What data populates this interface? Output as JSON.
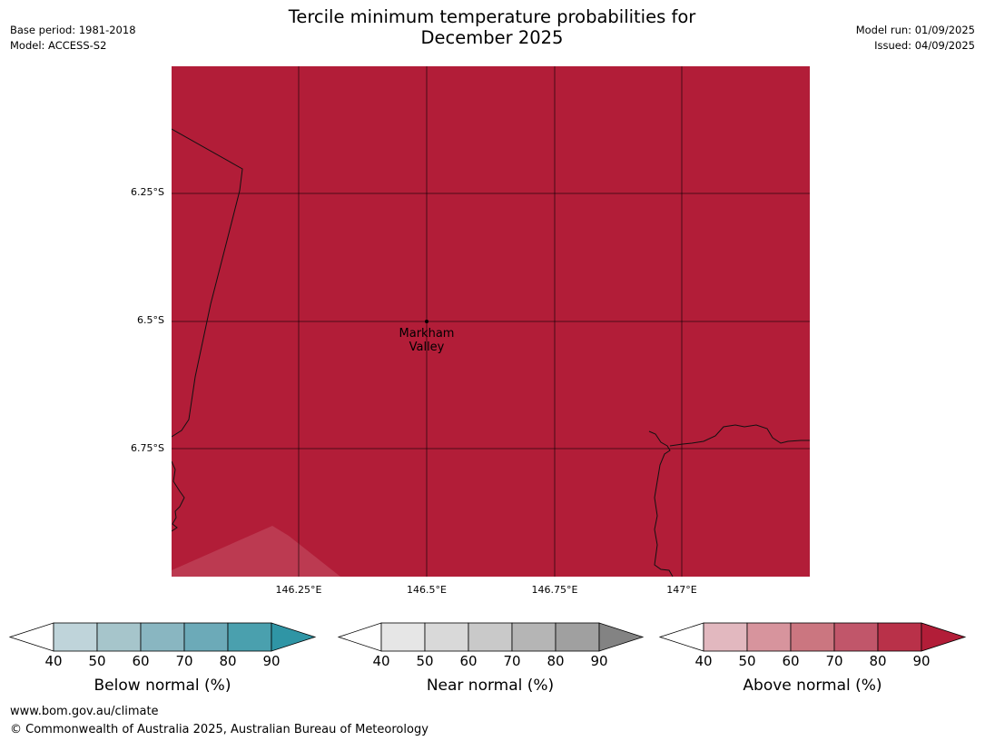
{
  "header": {
    "title_line1": "Tercile minimum temperature probabilities for",
    "title_line2": "December 2025",
    "base_period": "Base period: 1981-2018",
    "model": "Model: ACCESS-S2",
    "model_run": "Model run: 01/09/2025",
    "issued": "Issued: 04/09/2025"
  },
  "map": {
    "fill_color": "#b21d38",
    "lat_labels": [
      "6.25°S",
      "6.5°S",
      "6.75°S"
    ],
    "lon_labels": [
      "146.25°E",
      "146.5°E",
      "146.75°E",
      "147°E"
    ],
    "place": {
      "name_line1": "Markham",
      "name_line2": "Valley"
    }
  },
  "colorbars": [
    {
      "title": "Below normal (%)",
      "ticks": [
        "40",
        "50",
        "60",
        "70",
        "80",
        "90"
      ],
      "colors": [
        "#bfd4da",
        "#a6c5cb",
        "#89b6c1",
        "#6caab8",
        "#4aa0ae"
      ],
      "extend_color": "#2f95a5"
    },
    {
      "title": "Near normal (%)",
      "ticks": [
        "40",
        "50",
        "60",
        "70",
        "80",
        "90"
      ],
      "colors": [
        "#e6e6e6",
        "#d9d9d9",
        "#c9c9c9",
        "#b5b5b5",
        "#a0a0a0"
      ],
      "extend_color": "#838383"
    },
    {
      "title": "Above normal (%)",
      "ticks": [
        "40",
        "50",
        "60",
        "70",
        "80",
        "90"
      ],
      "colors": [
        "#e2b8bf",
        "#d7949d",
        "#cb7680",
        "#c1566a",
        "#b93149"
      ],
      "extend_color": "#b21d38"
    }
  ],
  "footer": {
    "website": "www.bom.gov.au/climate",
    "copyright": "© Commonwealth of Australia 2025, Australian Bureau of Meteorology"
  }
}
